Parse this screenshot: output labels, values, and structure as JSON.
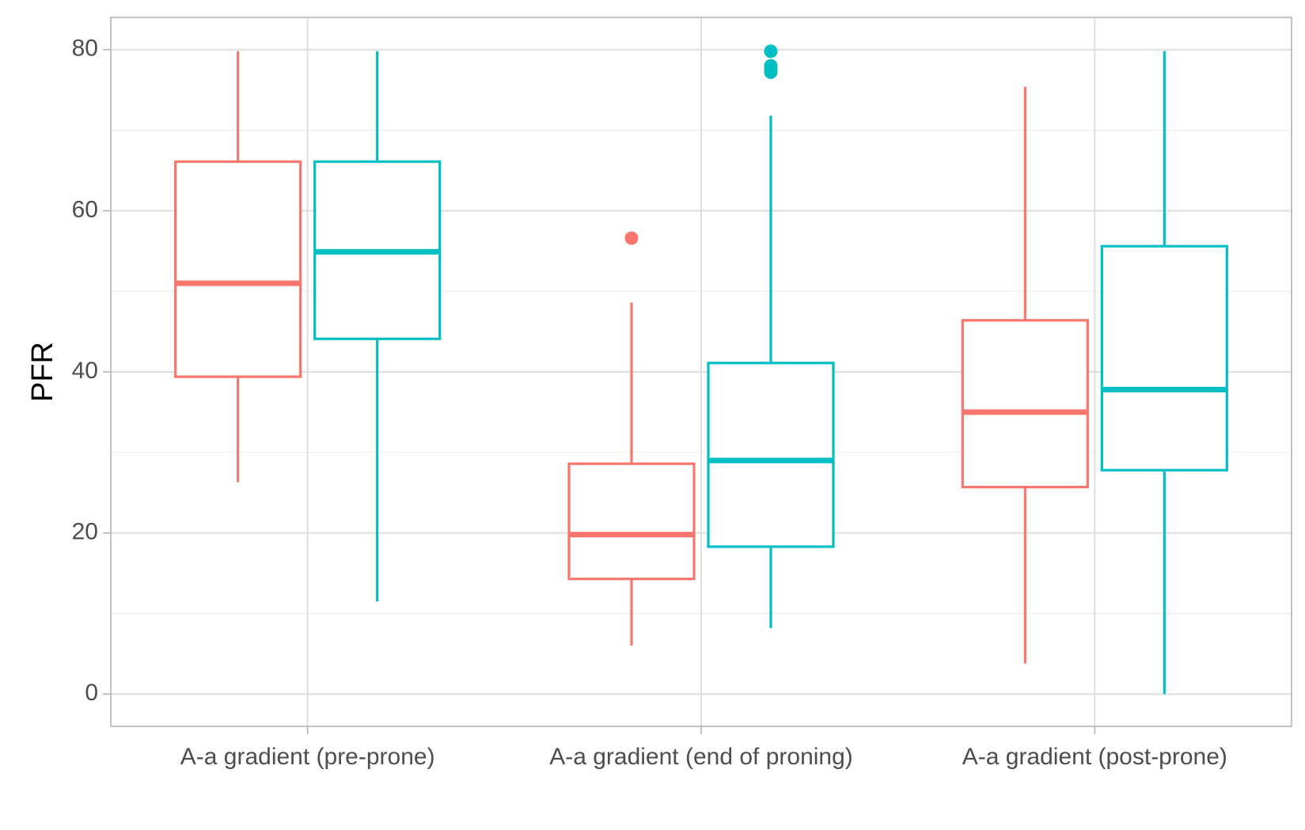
{
  "chart_data": {
    "type": "boxplot",
    "title": "",
    "xlabel": "",
    "ylabel": "PFR",
    "ylim": [
      -4,
      84
    ],
    "y_ticks": [
      0,
      20,
      40,
      60,
      80
    ],
    "grid": true,
    "legend": "none",
    "categories": [
      "A-a gradient (pre-prone)",
      "A-a gradient (end of proning)",
      "A-a gradient (post-prone)"
    ],
    "series": [
      {
        "color": "#F8766D",
        "boxes": [
          {
            "whisker_low": 26.3,
            "q1": 39.4,
            "median": 51.0,
            "q3": 66.1,
            "whisker_high": 79.8,
            "outliers": []
          },
          {
            "whisker_low": 6.0,
            "q1": 14.3,
            "median": 19.8,
            "q3": 28.6,
            "whisker_high": 48.6,
            "outliers": [
              56.6
            ]
          },
          {
            "whisker_low": 3.8,
            "q1": 25.7,
            "median": 35.0,
            "q3": 46.4,
            "whisker_high": 75.4,
            "outliers": []
          }
        ]
      },
      {
        "color": "#00BFC4",
        "boxes": [
          {
            "whisker_low": 11.5,
            "q1": 44.1,
            "median": 54.9,
            "q3": 66.1,
            "whisker_high": 79.8,
            "outliers": []
          },
          {
            "whisker_low": 8.2,
            "q1": 18.3,
            "median": 29.0,
            "q3": 41.1,
            "whisker_high": 71.8,
            "outliers": [
              77.2,
              77.6,
              78.0,
              79.8
            ]
          },
          {
            "whisker_low": 0.0,
            "q1": 27.8,
            "median": 37.8,
            "q3": 55.6,
            "whisker_high": 79.8,
            "outliers": []
          }
        ]
      }
    ]
  }
}
